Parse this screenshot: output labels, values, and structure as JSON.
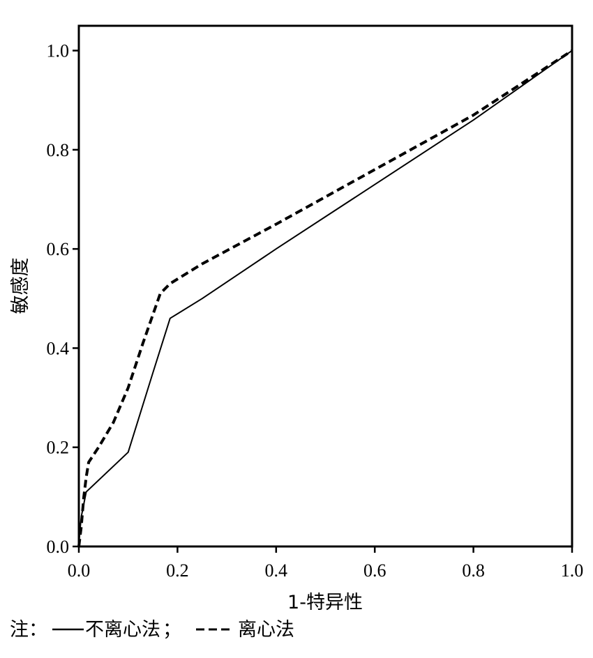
{
  "chart_data": {
    "type": "line",
    "xlabel": "1-特异性",
    "ylabel": "敏感度",
    "xlim": [
      0,
      1
    ],
    "ylim": [
      0,
      1.05
    ],
    "xticks": [
      0.0,
      0.2,
      0.4,
      0.6,
      0.8,
      1.0
    ],
    "yticks": [
      0.0,
      0.2,
      0.4,
      0.6,
      0.8,
      1.0
    ],
    "xtick_labels": [
      "0.0",
      "0.2",
      "0.4",
      "0.6",
      "0.8",
      "1.0"
    ],
    "ytick_labels": [
      "0.0",
      "0.2",
      "0.4",
      "0.6",
      "0.8",
      "1.0"
    ],
    "grid": false,
    "series": [
      {
        "name": "不离心法",
        "style": "solid",
        "color": "#000000",
        "x": [
          0.0,
          0.002,
          0.005,
          0.015,
          0.1,
          0.15,
          0.185,
          0.25,
          0.4,
          0.6,
          0.8,
          1.0
        ],
        "y": [
          0.0,
          0.03,
          0.06,
          0.11,
          0.19,
          0.35,
          0.46,
          0.5,
          0.6,
          0.73,
          0.86,
          1.0
        ]
      },
      {
        "name": "离心法",
        "style": "dashed",
        "color": "#000000",
        "x": [
          0.0,
          0.005,
          0.01,
          0.015,
          0.02,
          0.04,
          0.07,
          0.1,
          0.13,
          0.165,
          0.185,
          0.25,
          0.4,
          0.6,
          0.8,
          0.9,
          1.0
        ],
        "y": [
          0.0,
          0.04,
          0.1,
          0.14,
          0.17,
          0.2,
          0.25,
          0.32,
          0.41,
          0.51,
          0.53,
          0.57,
          0.65,
          0.76,
          0.87,
          0.935,
          1.0
        ]
      }
    ]
  },
  "legend": {
    "prefix": "注：",
    "separator": "；",
    "solid_label": "不离心法",
    "dashed_label": "离心法"
  }
}
